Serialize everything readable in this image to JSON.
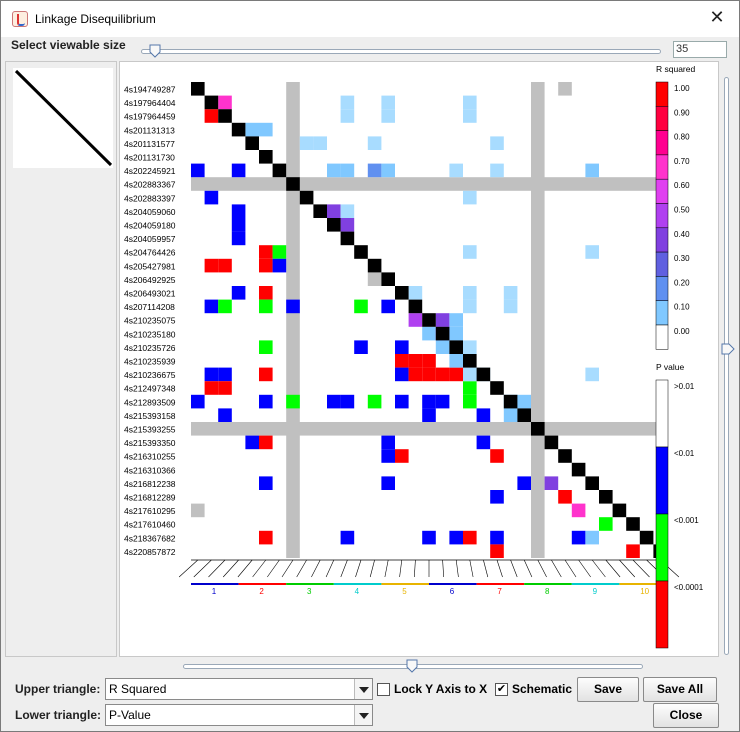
{
  "window": {
    "title": "Linkage Disequilibrium",
    "close_glyph": "✕",
    "icon": "java-cup-icon"
  },
  "size_control": {
    "label": "Select viewable size",
    "value": "35"
  },
  "upper_triangle": {
    "label": "Upper triangle:",
    "value": "R Squared"
  },
  "lower_triangle": {
    "label": "Lower triangle:",
    "value": "P-Value"
  },
  "lock_y_axis": {
    "label": "Lock Y Axis to X",
    "checked": false
  },
  "schematic": {
    "label": "Schematic",
    "checked": true,
    "check_glyph": "✔"
  },
  "buttons": {
    "save": "Save",
    "save_all": "Save All",
    "close": "Close"
  },
  "markers": [
    "4s194749287",
    "4s197964404",
    "4s197964459",
    "4s201131313",
    "4s201131577",
    "4s201131730",
    "4s202245921",
    "4s202883367",
    "4s202883397",
    "4s204059060",
    "4s204059180",
    "4s204059957",
    "4s204764426",
    "4s205427981",
    "4s206492925",
    "4s206493021",
    "4s207114208",
    "4s210235075",
    "4s210235180",
    "4s210235726",
    "4s210235939",
    "4s210236675",
    "4s212497348",
    "4s212893509",
    "4s215393158",
    "4s215393255",
    "4s215393350",
    "4s216310255",
    "4s216310366",
    "4s216812238",
    "4s216812289",
    "4s217610295",
    "4s217610460",
    "4s218367682",
    "4s220857872"
  ],
  "gray_markers": [
    7,
    25
  ],
  "chromosomes": [
    {
      "label": "1",
      "color": "#0000cc"
    },
    {
      "label": "2",
      "color": "#ff0000"
    },
    {
      "label": "3",
      "color": "#00cc00"
    },
    {
      "label": "4",
      "color": "#00cccc"
    },
    {
      "label": "5",
      "color": "#e8b400"
    },
    {
      "label": "6",
      "color": "#0000cc"
    },
    {
      "label": "7",
      "color": "#ff0000"
    },
    {
      "label": "8",
      "color": "#00cc00"
    },
    {
      "label": "9",
      "color": "#00cccc"
    },
    {
      "label": "10",
      "color": "#e8b400"
    }
  ],
  "r2_legend": {
    "title": "R squared",
    "ticks": [
      "1.00",
      "0.90",
      "0.80",
      "0.70",
      "0.60",
      "0.50",
      "0.40",
      "0.30",
      "0.20",
      "0.10",
      "0.00"
    ],
    "colors": [
      "#ff0000",
      "#ff0040",
      "#ff0090",
      "#ff33cc",
      "#e040f0",
      "#b040f0",
      "#8040e0",
      "#6060e0",
      "#6090f0",
      "#80c8ff",
      "#ffffff"
    ]
  },
  "p_legend": {
    "title": "P value",
    "ticks": [
      ">0.01",
      "<0.01",
      "<0.001",
      "<0.0001"
    ],
    "colors": [
      "#ffffff",
      "#0000ff",
      "#00ff00",
      "#ff0000"
    ]
  },
  "lower_cells": [
    [
      2,
      1,
      "#ff0000"
    ],
    [
      6,
      0,
      "#0000ff"
    ],
    [
      6,
      3,
      "#0000ff"
    ],
    [
      8,
      1,
      "#0000ff"
    ],
    [
      9,
      3,
      "#0000ff"
    ],
    [
      10,
      3,
      "#0000ff"
    ],
    [
      11,
      3,
      "#0000ff"
    ],
    [
      12,
      5,
      "#ff0000"
    ],
    [
      12,
      6,
      "#00ff00"
    ],
    [
      13,
      1,
      "#ff0000"
    ],
    [
      13,
      2,
      "#ff0000"
    ],
    [
      13,
      5,
      "#ff0000"
    ],
    [
      13,
      6,
      "#0000ff"
    ],
    [
      15,
      3,
      "#0000ff"
    ],
    [
      15,
      5,
      "#ff0000"
    ],
    [
      16,
      1,
      "#0000ff"
    ],
    [
      16,
      2,
      "#00ff00"
    ],
    [
      16,
      5,
      "#00ff00"
    ],
    [
      16,
      7,
      "#0000ff"
    ],
    [
      16,
      12,
      "#00ff00"
    ],
    [
      16,
      14,
      "#0000ff"
    ],
    [
      19,
      5,
      "#00ff00"
    ],
    [
      19,
      12,
      "#0000ff"
    ],
    [
      19,
      15,
      "#0000ff"
    ],
    [
      20,
      15,
      "#ff0000"
    ],
    [
      20,
      16,
      "#ff0000"
    ],
    [
      20,
      17,
      "#ff0000"
    ],
    [
      21,
      1,
      "#0000ff"
    ],
    [
      21,
      2,
      "#0000ff"
    ],
    [
      21,
      5,
      "#ff0000"
    ],
    [
      21,
      15,
      "#0000ff"
    ],
    [
      21,
      16,
      "#ff0000"
    ],
    [
      21,
      17,
      "#ff0000"
    ],
    [
      21,
      18,
      "#ff0000"
    ],
    [
      21,
      19,
      "#ff0000"
    ],
    [
      22,
      1,
      "#ff0000"
    ],
    [
      22,
      2,
      "#ff0000"
    ],
    [
      22,
      20,
      "#00ff00"
    ],
    [
      23,
      0,
      "#0000ff"
    ],
    [
      23,
      5,
      "#0000ff"
    ],
    [
      23,
      7,
      "#00ff00"
    ],
    [
      23,
      10,
      "#0000ff"
    ],
    [
      23,
      11,
      "#0000ff"
    ],
    [
      23,
      13,
      "#00ff00"
    ],
    [
      23,
      15,
      "#0000ff"
    ],
    [
      23,
      17,
      "#0000ff"
    ],
    [
      23,
      18,
      "#0000ff"
    ],
    [
      23,
      20,
      "#00ff00"
    ],
    [
      24,
      2,
      "#0000ff"
    ],
    [
      24,
      17,
      "#0000ff"
    ],
    [
      24,
      21,
      "#0000ff"
    ],
    [
      26,
      4,
      "#0000ff"
    ],
    [
      26,
      5,
      "#ff0000"
    ],
    [
      26,
      14,
      "#0000ff"
    ],
    [
      26,
      21,
      "#0000ff"
    ],
    [
      27,
      14,
      "#0000ff"
    ],
    [
      27,
      15,
      "#ff0000"
    ],
    [
      27,
      22,
      "#ff0000"
    ],
    [
      29,
      5,
      "#0000ff"
    ],
    [
      29,
      14,
      "#0000ff"
    ],
    [
      29,
      24,
      "#0000ff"
    ],
    [
      30,
      22,
      "#0000ff"
    ],
    [
      30,
      27,
      "#ff0000"
    ],
    [
      31,
      0,
      "#c0c0c0"
    ],
    [
      32,
      30,
      "#00ff00"
    ],
    [
      33,
      5,
      "#ff0000"
    ],
    [
      33,
      11,
      "#0000ff"
    ],
    [
      33,
      17,
      "#0000ff"
    ],
    [
      33,
      19,
      "#0000ff"
    ],
    [
      33,
      20,
      "#ff0000"
    ],
    [
      33,
      22,
      "#0000ff"
    ],
    [
      33,
      28,
      "#0000ff"
    ],
    [
      34,
      22,
      "#ff0000"
    ],
    [
      34,
      32,
      "#ff0000"
    ]
  ],
  "upper_cells": [
    [
      1,
      2,
      "#ff33cc"
    ],
    [
      1,
      11,
      "#a8dcff"
    ],
    [
      1,
      14,
      "#a8dcff"
    ],
    [
      1,
      20,
      "#a8dcff"
    ],
    [
      2,
      11,
      "#a8dcff"
    ],
    [
      2,
      14,
      "#a8dcff"
    ],
    [
      2,
      20,
      "#a8dcff"
    ],
    [
      3,
      4,
      "#80c8ff"
    ],
    [
      3,
      5,
      "#80c8ff"
    ],
    [
      4,
      8,
      "#a8dcff"
    ],
    [
      4,
      9,
      "#a8dcff"
    ],
    [
      4,
      13,
      "#a8dcff"
    ],
    [
      4,
      22,
      "#a8dcff"
    ],
    [
      6,
      10,
      "#80c8ff"
    ],
    [
      6,
      11,
      "#80c8ff"
    ],
    [
      6,
      13,
      "#6090f0"
    ],
    [
      6,
      14,
      "#80c8ff"
    ],
    [
      6,
      19,
      "#a8dcff"
    ],
    [
      6,
      22,
      "#a8dcff"
    ],
    [
      6,
      29,
      "#80c8ff"
    ],
    [
      8,
      20,
      "#a8dcff"
    ],
    [
      9,
      10,
      "#8040e0"
    ],
    [
      9,
      11,
      "#a8dcff"
    ],
    [
      10,
      11,
      "#8040e0"
    ],
    [
      12,
      20,
      "#a8dcff"
    ],
    [
      12,
      29,
      "#a8dcff"
    ],
    [
      14,
      13,
      "#c0c0c0"
    ],
    [
      15,
      14,
      "#ffffff"
    ],
    [
      15,
      16,
      "#a8dcff"
    ],
    [
      15,
      20,
      "#a8dcff"
    ],
    [
      15,
      23,
      "#a8dcff"
    ],
    [
      16,
      20,
      "#a8dcff"
    ],
    [
      16,
      23,
      "#a8dcff"
    ],
    [
      17,
      16,
      "#b040f0"
    ],
    [
      17,
      18,
      "#8040e0"
    ],
    [
      17,
      19,
      "#80c8ff"
    ],
    [
      18,
      17,
      "#80c8ff"
    ],
    [
      18,
      18,
      "#8040e0"
    ],
    [
      18,
      19,
      "#80c8ff"
    ],
    [
      19,
      18,
      "#80c8ff"
    ],
    [
      19,
      19,
      "#80c8ff"
    ],
    [
      19,
      20,
      "#a8dcff"
    ],
    [
      20,
      19,
      "#80c8ff"
    ],
    [
      21,
      20,
      "#a8dcff"
    ],
    [
      21,
      21,
      "#a8dcff"
    ],
    [
      21,
      29,
      "#a8dcff"
    ],
    [
      23,
      23,
      "#80c8ff"
    ],
    [
      23,
      24,
      "#80c8ff"
    ],
    [
      24,
      23,
      "#80c8ff"
    ],
    [
      0,
      27,
      "#c0c0c0"
    ],
    [
      29,
      26,
      "#8040e0"
    ],
    [
      31,
      28,
      "#ff33cc"
    ],
    [
      33,
      29,
      "#80c8ff"
    ]
  ]
}
